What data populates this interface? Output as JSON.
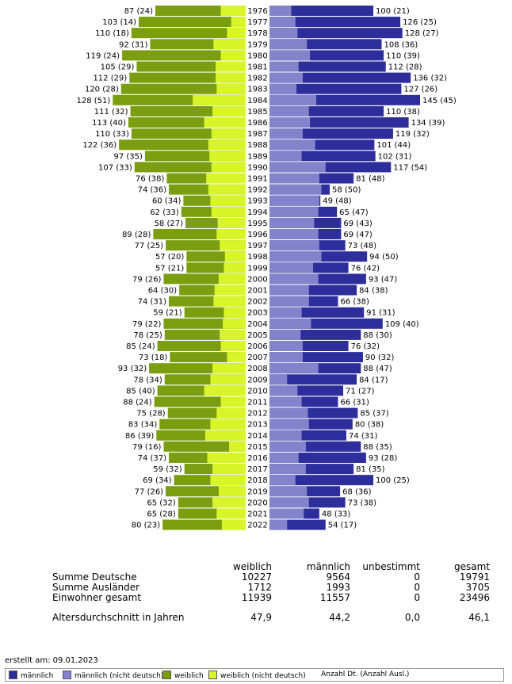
{
  "chart_data": {
    "type": "bar",
    "subtype": "population-pyramid",
    "colors": {
      "maennlich": "#2e2d9c",
      "maennlich_nicht_deutsch": "#8383cc",
      "weiblich": "#7a9e10",
      "weiblich_nicht_deutsch": "#d8f52a"
    },
    "categories": [
      "1976",
      "1977",
      "1978",
      "1979",
      "1980",
      "1981",
      "1982",
      "1983",
      "1984",
      "1985",
      "1986",
      "1987",
      "1988",
      "1989",
      "1990",
      "1991",
      "1992",
      "1993",
      "1994",
      "1995",
      "1996",
      "1997",
      "1998",
      "1999",
      "2000",
      "2001",
      "2002",
      "2003",
      "2004",
      "2005",
      "2006",
      "2007",
      "2008",
      "2009",
      "2010",
      "2011",
      "2012",
      "2013",
      "2014",
      "2015",
      "2016",
      "2017",
      "2018",
      "2019",
      "2020",
      "2021",
      "2022"
    ],
    "series": [
      {
        "name": "weiblich",
        "values": [
          87,
          103,
          110,
          92,
          119,
          105,
          112,
          120,
          128,
          111,
          113,
          110,
          122,
          97,
          107,
          76,
          74,
          60,
          62,
          58,
          89,
          77,
          57,
          57,
          79,
          64,
          74,
          59,
          79,
          78,
          85,
          73,
          93,
          78,
          85,
          88,
          75,
          83,
          86,
          79,
          74,
          59,
          69,
          77,
          65,
          65,
          80
        ]
      },
      {
        "name": "weiblich (nicht deutsch)",
        "values": [
          24,
          14,
          18,
          31,
          24,
          29,
          29,
          28,
          51,
          32,
          40,
          33,
          36,
          35,
          33,
          38,
          36,
          34,
          33,
          27,
          28,
          25,
          20,
          21,
          26,
          30,
          31,
          21,
          22,
          25,
          24,
          18,
          32,
          34,
          40,
          24,
          28,
          34,
          39,
          16,
          37,
          32,
          34,
          26,
          32,
          28,
          23
        ]
      },
      {
        "name": "männlich",
        "values": [
          100,
          126,
          128,
          108,
          110,
          112,
          136,
          127,
          145,
          110,
          134,
          119,
          101,
          102,
          117,
          81,
          58,
          49,
          65,
          69,
          69,
          73,
          94,
          76,
          93,
          84,
          66,
          91,
          109,
          88,
          76,
          90,
          88,
          84,
          71,
          66,
          85,
          80,
          74,
          88,
          93,
          81,
          100,
          68,
          73,
          48,
          54
        ]
      },
      {
        "name": "männlich (nicht deutsch)",
        "values": [
          21,
          25,
          27,
          36,
          39,
          28,
          32,
          26,
          45,
          38,
          39,
          32,
          44,
          31,
          54,
          48,
          50,
          48,
          47,
          43,
          47,
          48,
          50,
          42,
          47,
          38,
          38,
          31,
          40,
          30,
          32,
          32,
          47,
          17,
          27,
          31,
          37,
          38,
          31,
          35,
          28,
          35,
          25,
          36,
          38,
          33,
          17
        ]
      }
    ],
    "labels_weiblich": [
      "87 (24)",
      "103 (14)",
      "110 (18)",
      "92 (31)",
      "119 (24)",
      "105 (29)",
      "112 (29)",
      "120 (28)",
      "128 (51)",
      "111 (32)",
      "113 (40)",
      "110 (33)",
      "122 (36)",
      "97 (35)",
      "107 (33)",
      "76 (38)",
      "74 (36)",
      "60 (34)",
      "62 (33)",
      "58 (27)",
      "89 (28)",
      "77 (25)",
      "57 (20)",
      "57 (21)",
      "79 (26)",
      "64 (30)",
      "74 (31)",
      "59 (21)",
      "79 (22)",
      "78 (25)",
      "85 (24)",
      "73 (18)",
      "93 (32)",
      "78 (34)",
      "85 (40)",
      "88 (24)",
      "75 (28)",
      "83 (34)",
      "86 (39)",
      "79 (16)",
      "74 (37)",
      "59 (32)",
      "69 (34)",
      "77 (26)",
      "65 (32)",
      "65 (28)",
      "80 (23)"
    ],
    "labels_maennlich": [
      "100 (21)",
      "126 (25)",
      "128 (27)",
      "108 (36)",
      "110 (39)",
      "112 (28)",
      "136 (32)",
      "127 (26)",
      "145 (45)",
      "110 (38)",
      "134 (39)",
      "119 (32)",
      "101 (44)",
      "102 (31)",
      "117 (54)",
      "81 (48)",
      "58 (50)",
      "49 (48)",
      "65 (47)",
      "69 (43)",
      "69 (47)",
      "73 (48)",
      "94 (50)",
      "76 (42)",
      "93 (47)",
      "84 (38)",
      "66 (38)",
      "91 (31)",
      "109 (40)",
      "88 (30)",
      "76 (32)",
      "90 (32)",
      "88 (47)",
      "84 (17)",
      "71 (27)",
      "66 (31)",
      "85 (37)",
      "80 (38)",
      "74 (31)",
      "88 (35)",
      "93 (28)",
      "81 (35)",
      "100 (25)",
      "68 (36)",
      "73 (38)",
      "48 (33)",
      "54 (17)"
    ],
    "value_max": 145
  },
  "summary": {
    "headers": {
      "weiblich": "weiblich",
      "maennlich": "männlich",
      "unbestimmt": "unbestimmt",
      "gesamt": "gesamt"
    },
    "rows": [
      {
        "label": "Summe Deutsche",
        "weiblich": "10227",
        "maennlich": "9564",
        "unbestimmt": "0",
        "gesamt": "19791"
      },
      {
        "label": "Summe Ausländer",
        "weiblich": "1712",
        "maennlich": "1993",
        "unbestimmt": "0",
        "gesamt": "3705"
      },
      {
        "label": "Einwohner gesamt",
        "weiblich": "11939",
        "maennlich": "11557",
        "unbestimmt": "0",
        "gesamt": "23496"
      }
    ],
    "avg": {
      "label": "Altersdurchschnitt in Jahren",
      "weiblich": "47,9",
      "maennlich": "44,2",
      "unbestimmt": "0,0",
      "gesamt": "46,1"
    }
  },
  "created": "erstellt am: 09.01.2023",
  "legend": {
    "maennlich": "männlich",
    "maennlich_nd": "männlich (nicht deutsch)",
    "weiblich": "weiblich",
    "weiblich_nd": "weiblich (nicht deutsch)",
    "note": "Anzahl Dt. (Anzahl Ausl.)"
  }
}
